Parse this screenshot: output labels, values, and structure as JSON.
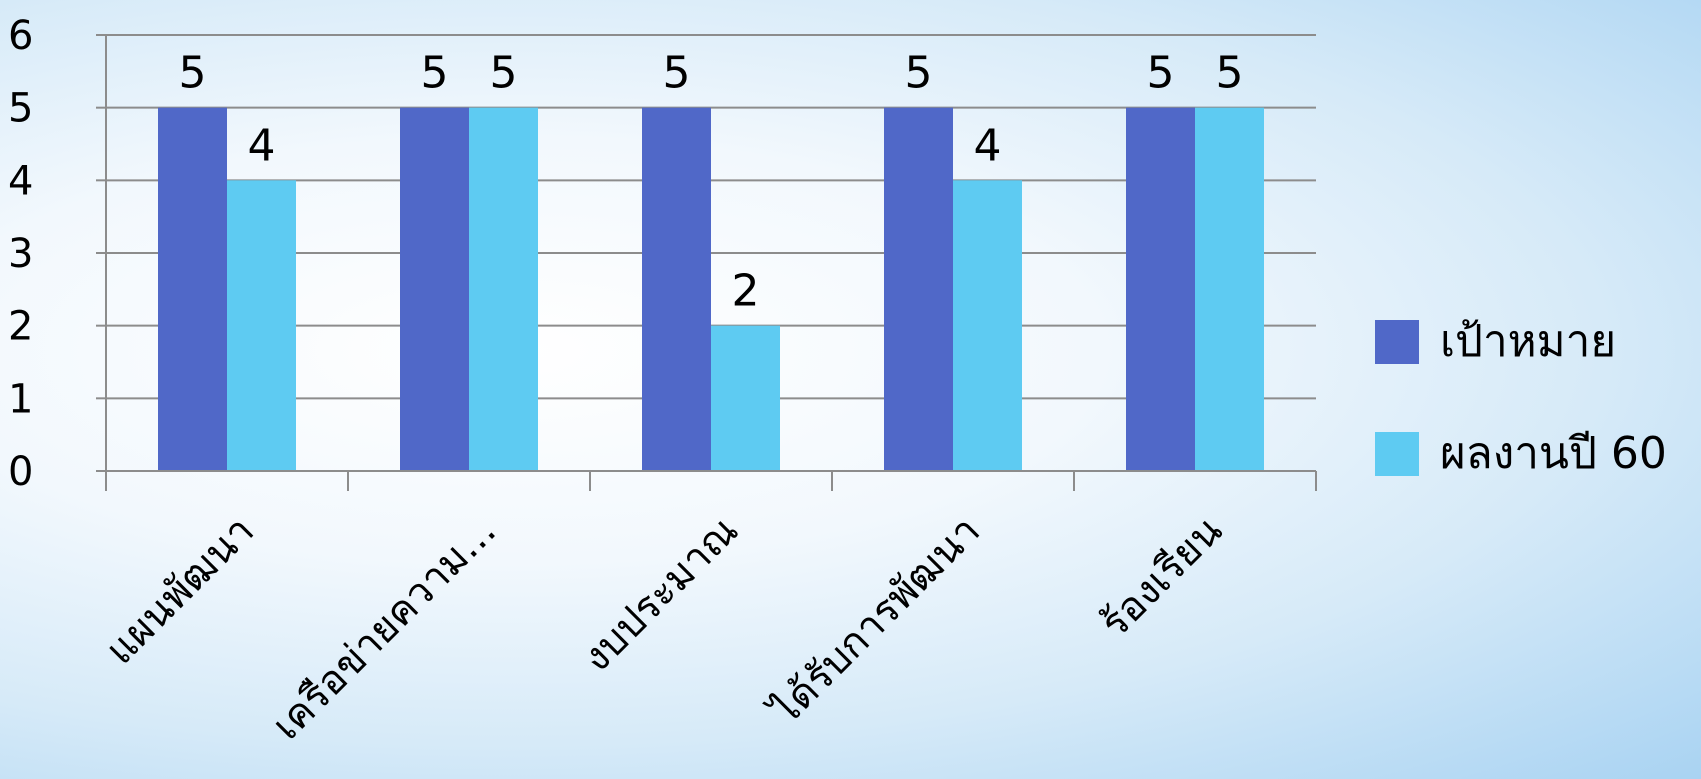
{
  "chart_data": {
    "type": "bar",
    "categories": [
      "แผนพัฒนา",
      "เครือข่ายความ...",
      "งบประมาณ",
      "ได้รับการพัฒนา",
      "ร้องเรียน"
    ],
    "series": [
      {
        "name": "เป้าหมาย",
        "values": [
          5,
          5,
          5,
          5,
          5
        ],
        "color": "#5068c8"
      },
      {
        "name": "ผลงานปี 60",
        "values": [
          4,
          5,
          2,
          4,
          5
        ],
        "color": "#5ecbf2"
      }
    ],
    "y_ticks": [
      "0",
      "1",
      "2",
      "3",
      "4",
      "5",
      "6"
    ],
    "ylim": [
      0,
      6
    ],
    "grid": true,
    "legend": "right",
    "data_labels": true
  }
}
